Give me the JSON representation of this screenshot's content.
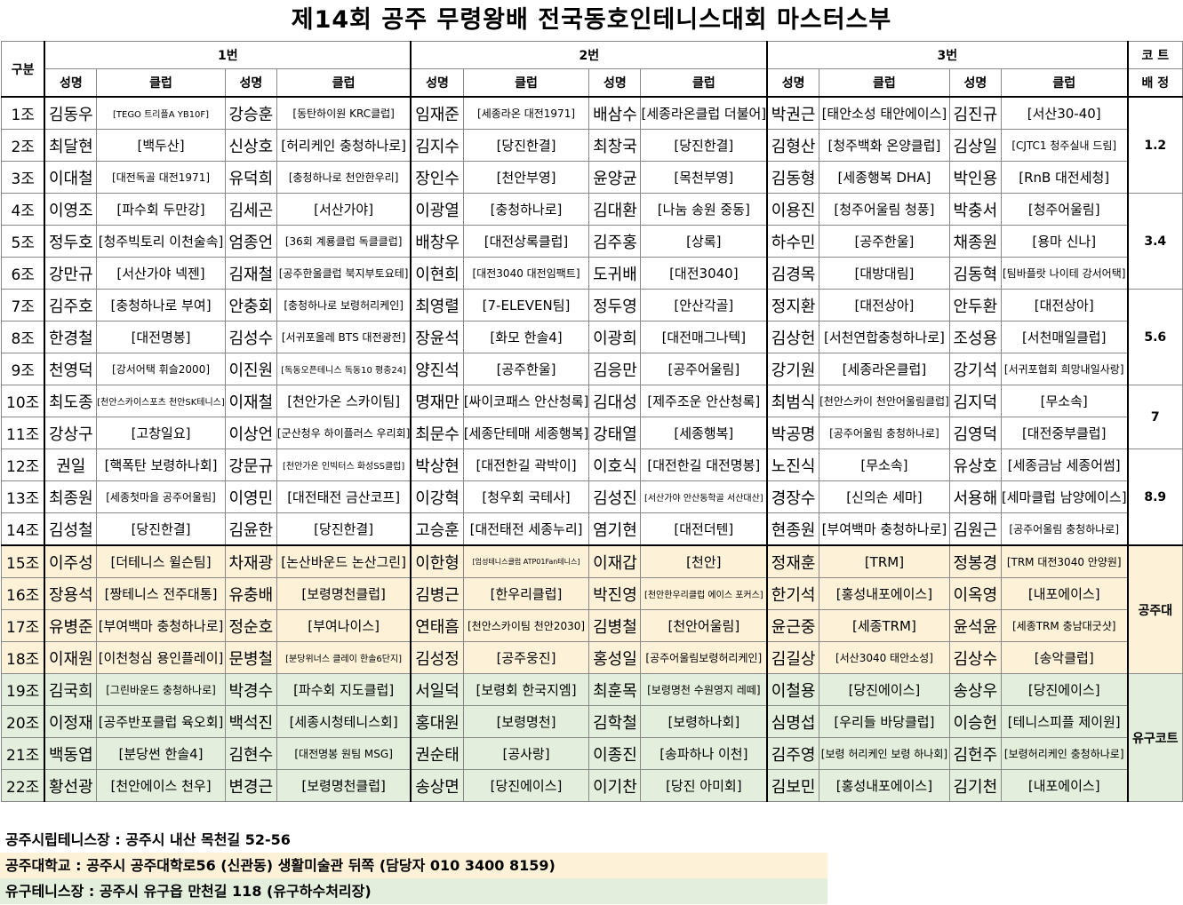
{
  "title": "제14회 공주 무령왕배 전국동호인테니스대회 마스터스부",
  "header": {
    "gubun": "구분",
    "groups": [
      "1번",
      "2번",
      "3번"
    ],
    "court_top": "코 트",
    "court_bottom": "배 정",
    "sub": [
      "성명",
      "클럽",
      "성명",
      "클럽",
      "성명",
      "클럽",
      "성명",
      "클럽",
      "성명",
      "클럽",
      "성명",
      "클럽"
    ]
  },
  "rows": [
    {
      "jo": "1조",
      "cells": [
        "김동우",
        "[TEGO 트리플A YB10F]",
        "강승훈",
        "[동탄하이원 KRC클럽]",
        "임재준",
        "[세종라온 대전1971]",
        "배삼수",
        "[세종라온클럽 더불어]",
        "박권근",
        "[태안소성 태안에이스]",
        "김진규",
        "[서산30-40]"
      ]
    },
    {
      "jo": "2조",
      "cells": [
        "최달현",
        "[백두산]",
        "신상호",
        "[허리케인 충청하나로]",
        "김지수",
        "[당진한결]",
        "최창국",
        "[당진한결]",
        "김형산",
        "[청주백화 온양클럽]",
        "김상일",
        "[CJTC1 청주실내 드림]"
      ]
    },
    {
      "jo": "3조",
      "cells": [
        "이대철",
        "[대전독골 대전1971]",
        "유덕희",
        "[충청하나로 천안한우리]",
        "장인수",
        "[천안부영]",
        "윤양균",
        "[목천부영]",
        "김동형",
        "[세종행복 DHA]",
        "박인용",
        "[RnB 대전세청]"
      ]
    },
    {
      "jo": "4조",
      "cells": [
        "이영조",
        "[파수회 두만강]",
        "김세곤",
        "[서산가야]",
        "이광열",
        "[충청하나로]",
        "김대환",
        "[나눔 송원 중동]",
        "이용진",
        "[청주어울림 청풍]",
        "박충서",
        "[청주어울림]"
      ]
    },
    {
      "jo": "5조",
      "cells": [
        "정두호",
        "[청주빅토리 이천술속]",
        "엄종언",
        "[36회 계룡클럽 독클클럽]",
        "배창우",
        "[대전상록클럽]",
        "김주홍",
        "[상록]",
        "하수민",
        "[공주한울]",
        "채종원",
        "[용마 신나]"
      ]
    },
    {
      "jo": "6조",
      "cells": [
        "강만규",
        "[서산가야 넥젠]",
        "김재철",
        "[공주한울클럽 북지부토요테]",
        "이현희",
        "[대전3040 대전임팩트]",
        "도귀배",
        "[대전3040]",
        "김경목",
        "[대방대림]",
        "김동혁",
        "[팀바플랏 나이테 강서어택]"
      ]
    },
    {
      "jo": "7조",
      "cells": [
        "김주호",
        "[충청하나로 부여]",
        "안충회",
        "[충청하나로 보령허리케인]",
        "최영렬",
        "[7-ELEVEN팀]",
        "정두영",
        "[안산각골]",
        "정지환",
        "[대전상아]",
        "안두환",
        "[대전상아]"
      ]
    },
    {
      "jo": "8조",
      "cells": [
        "한경철",
        "[대전명봉]",
        "김성수",
        "[서귀포올레 BTS 대전광전]",
        "장윤석",
        "[화모 한솔4]",
        "이광희",
        "[대전매그나텍]",
        "김상헌",
        "[서천연합충청하나로]",
        "조성용",
        "[서천매일클럽]"
      ]
    },
    {
      "jo": "9조",
      "cells": [
        "천영덕",
        "[강서어택 휘슬2000]",
        "이진원",
        "[독동오픈테니스 독동10 평충24]",
        "양진석",
        "[공주한울]",
        "김응만",
        "[공주어울림]",
        "강기원",
        "[세종라온클럽]",
        "강기석",
        "[서귀포협회 희망내일사랑]"
      ]
    },
    {
      "jo": "10조",
      "cells": [
        "최도종",
        "[천안스카이스포츠 천안SK테니스]",
        "이재철",
        "[천안가온 스카이팀]",
        "명재만",
        "[싸이코패스 안산청록]",
        "김대성",
        "[제주조운 안산청록]",
        "최범식",
        "[천안스카이 천안어울림클럽]",
        "김지덕",
        "[무소속]"
      ]
    },
    {
      "jo": "11조",
      "cells": [
        "강상구",
        "[고창일요]",
        "이상언",
        "[군산청우 하이플러스 우리회]",
        "최문수",
        "[세종단테매 세종행복]",
        "강태열",
        "[세종행복]",
        "박공명",
        "[공주어울림 충청하나로]",
        "김영덕",
        "[대전중부클럽]"
      ]
    },
    {
      "jo": "12조",
      "cells": [
        "권일",
        "[핵폭탄 보령하나회]",
        "강문규",
        "[천안가온 인빅터스 화성SS클럽]",
        "박상현",
        "[대전한길 곽박이]",
        "이호식",
        "[대전한길 대전명봉]",
        "노진식",
        "[무소속]",
        "유상호",
        "[세종금남 세종어썸]"
      ]
    },
    {
      "jo": "13조",
      "cells": [
        "최종원",
        "[세종첫마을 공주어울림]",
        "이영민",
        "[대전태전 금산코프]",
        "이강혁",
        "[청우회 국테사]",
        "김성진",
        "[서산가야 안산동학골 서산대산]",
        "경장수",
        "[신의손 세마]",
        "서용해",
        "[세마클럽 남양에이스]"
      ]
    },
    {
      "jo": "14조",
      "cells": [
        "김성철",
        "[당진한결]",
        "김윤한",
        "[당진한결]",
        "고승훈",
        "[대전태전 세종누리]",
        "염기현",
        "[대전더텐]",
        "현종원",
        "[부여백마 충청하나로]",
        "김원근",
        "[공주어울림 충청하나로]"
      ]
    },
    {
      "jo": "15조",
      "cells": [
        "이주성",
        "[더테니스 윌슨팀]",
        "차재광",
        "[논산바운드 논산그린]",
        "이한형",
        "[엄성테니스클럽 ATP01Fan테니스]",
        "이재갑",
        "[천안]",
        "정재훈",
        "[TRM]",
        "정봉경",
        "[TRM 대전3040 안양원]"
      ]
    },
    {
      "jo": "16조",
      "cells": [
        "장용석",
        "[짱테니스 전주대통]",
        "유충배",
        "[보령명천클럽]",
        "김병근",
        "[한우리클럽]",
        "박진영",
        "[천안한우리클럽 에이스 포커스]",
        "한기석",
        "[홍성내포에이스]",
        "이옥영",
        "[내포에이스]"
      ]
    },
    {
      "jo": "17조",
      "cells": [
        "유병준",
        "[부여백마 충청하나로]",
        "정순호",
        "[부여나이스]",
        "연태흠",
        "[천안스카이팀 천안2030]",
        "김병철",
        "[천안어울림]",
        "윤근중",
        "[세종TRM]",
        "윤석윤",
        "[세종TRM 충남대굿샷]"
      ]
    },
    {
      "jo": "18조",
      "cells": [
        "이재원",
        "[이천청심 용인플레이]",
        "문병철",
        "[분당위너스 클레이 한솔6단지]",
        "김성정",
        "[공주웅진]",
        "홍성일",
        "[공주어울림보령허리케인]",
        "김길상",
        "[서산3040 태안소성]",
        "김상수",
        "[송악클럽]"
      ]
    },
    {
      "jo": "19조",
      "cells": [
        "김국희",
        "[그린바운드 충청하나로]",
        "박경수",
        "[파수회 지도클럽]",
        "서일덕",
        "[보령회 한국지엠]",
        "최훈목",
        "[보령명천 수원영지 레떼]",
        "이철용",
        "[당진에이스]",
        "송상우",
        "[당진에이스]"
      ]
    },
    {
      "jo": "20조",
      "cells": [
        "이정재",
        "[공주반포클럽 육오회]",
        "백석진",
        "[세종시청테니스회]",
        "홍대원",
        "[보령명천]",
        "김학철",
        "[보령하나회]",
        "심명섭",
        "[우리들 바당클럽]",
        "이승헌",
        "[테니스피플 제이원]"
      ]
    },
    {
      "jo": "21조",
      "cells": [
        "백동엽",
        "[분당썬 한솔4]",
        "김현수",
        "[대전명봉 원팀 MSG]",
        "권순태",
        "[공사랑]",
        "이종진",
        "[송파하나 이천]",
        "김주영",
        "[보령 허리케인 보령 하나회]",
        "김헌주",
        "[보령허리케인 충청하나로]"
      ]
    },
    {
      "jo": "22조",
      "cells": [
        "황선광",
        "[천안에이스 천우]",
        "변경근",
        "[보령명천클럽]",
        "송상면",
        "[당진에이스]",
        "이기찬",
        "[당진 아미회]",
        "김보민",
        "[홍성내포에이스]",
        "김기천",
        "[내포에이스]"
      ]
    }
  ],
  "courts": [
    "1.2",
    "3.4",
    "5.6",
    "7",
    "8.9",
    "공주대",
    "유구코트"
  ],
  "venues": [
    {
      "text": "공주시립테니스장 : 공주시 내산 목천길 52-56",
      "color": "#ffffff"
    },
    {
      "text": "공주대학교 : 공주시 공주대학로56 (신관동) 생활미술관 뒤쪽 (담당자 010 3400 8159)",
      "color": "#fdf2d8"
    },
    {
      "text": "유구테니스장 : 공주시 유구읍 만천길 118 (유구하수처리장)",
      "color": "#e3efdc"
    }
  ]
}
